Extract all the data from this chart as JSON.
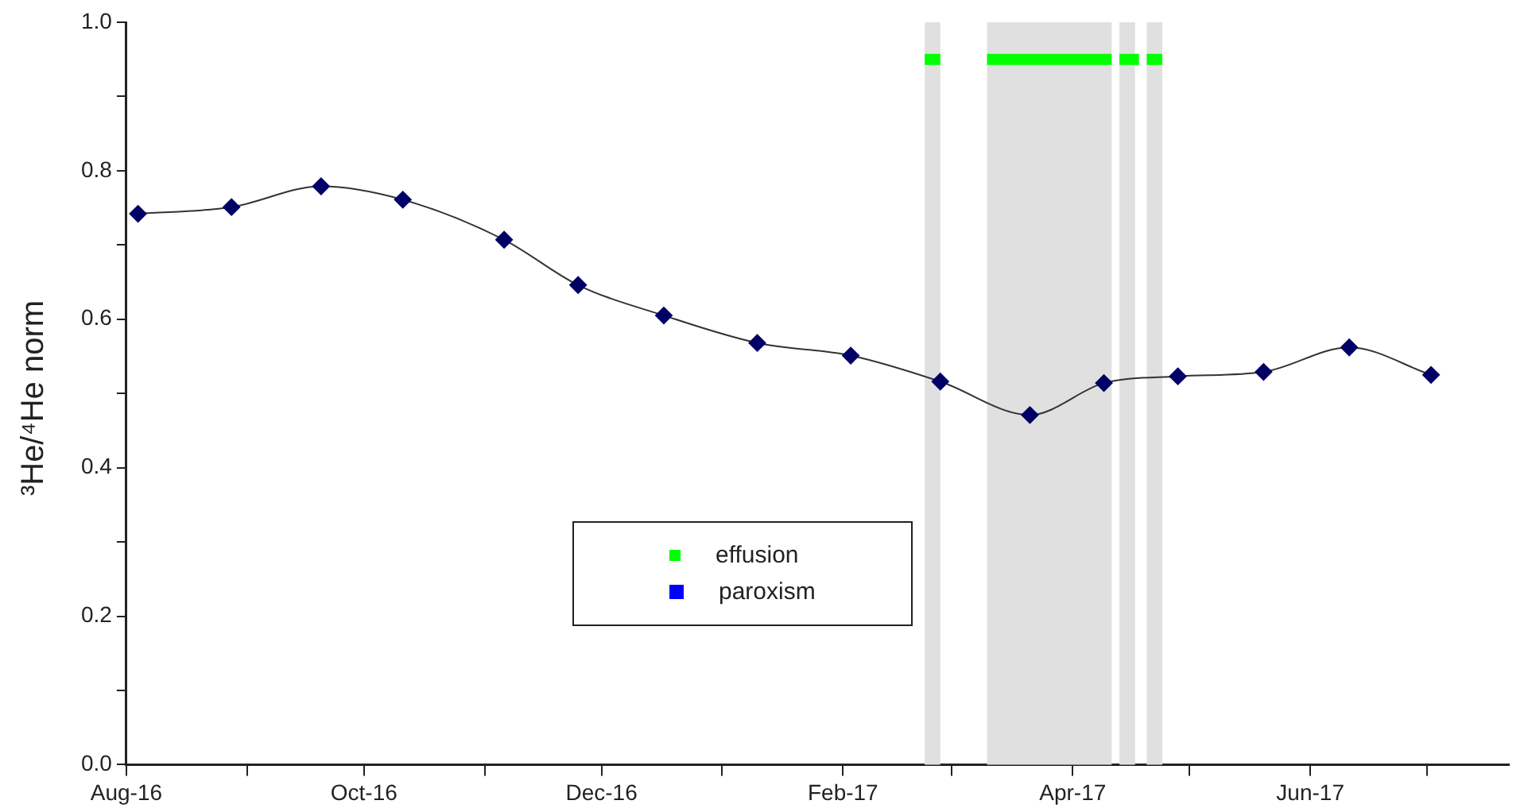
{
  "chart_data": {
    "type": "line",
    "ylabel": "³He/⁴He norm",
    "x": [
      "2016-08-04",
      "2016-08-28",
      "2016-09-20",
      "2016-10-11",
      "2016-11-06",
      "2016-11-25",
      "2016-12-17",
      "2017-01-10",
      "2017-02-03",
      "2017-02-26",
      "2017-03-21",
      "2017-04-09",
      "2017-04-28",
      "2017-05-20",
      "2017-06-11",
      "2017-07-02"
    ],
    "series": [
      {
        "color": "#000066",
        "marker": "diamond",
        "values": [
          0.742,
          0.751,
          0.779,
          0.761,
          0.707,
          0.646,
          0.605,
          0.568,
          0.551,
          0.516,
          0.471,
          0.514,
          0.523,
          0.529,
          0.562,
          0.525
        ]
      },
      {
        "name": "effusion",
        "color": "#00ff00",
        "marker": "none",
        "x": [
          "2017-02-22",
          "2017-02-26",
          "2017-03-01",
          "2017-03-10",
          "2017-04-11",
          "2017-04-12",
          "2017-04-13",
          "2017-04-18",
          "2017-04-19",
          "2017-04-20",
          "2017-04-24"
        ],
        "values": [
          0.95,
          0.95,
          null,
          0.95,
          0.95,
          null,
          0.95,
          0.95,
          null,
          0.95,
          0.95
        ]
      },
      {
        "name": "paroxism",
        "color": "#0000ff",
        "marker": "square",
        "values": [
          null,
          null,
          null,
          null,
          null,
          null,
          null,
          null,
          null,
          null,
          null,
          null,
          null,
          null,
          null,
          null
        ]
      }
    ],
    "bands": [
      {
        "axis": "x",
        "from": "2017-02-22",
        "to": "2017-02-26",
        "color": "#e0e0e0"
      },
      {
        "axis": "x",
        "from": "2017-03-10",
        "to": "2017-04-11",
        "color": "#e0e0e0"
      },
      {
        "axis": "x",
        "from": "2017-04-13",
        "to": "2017-04-17",
        "color": "#e0e0e0"
      },
      {
        "axis": "x",
        "from": "2017-04-20",
        "to": "2017-04-24",
        "color": "#e0e0e0"
      }
    ],
    "xlim": [
      "2016-08-01",
      "2017-07-22"
    ],
    "xticks": [
      {
        "value": "2016-08-01",
        "label": "Aug-16"
      },
      {
        "value": "2016-09-01",
        "label": null
      },
      {
        "value": "2016-10-01",
        "label": "Oct-16"
      },
      {
        "value": "2016-11-01",
        "label": null
      },
      {
        "value": "2016-12-01",
        "label": "Dec-16"
      },
      {
        "value": "2017-01-01",
        "label": null
      },
      {
        "value": "2017-02-01",
        "label": "Feb-17"
      },
      {
        "value": "2017-03-01",
        "label": null
      },
      {
        "value": "2017-04-01",
        "label": "Apr-17"
      },
      {
        "value": "2017-05-01",
        "label": null
      },
      {
        "value": "2017-06-01",
        "label": "Jun-17"
      },
      {
        "value": "2017-07-01",
        "label": null
      }
    ],
    "ylim": [
      0,
      1.0
    ],
    "yticks": [
      {
        "value": 0,
        "label": "0.0"
      },
      {
        "value": 0.1,
        "label": null
      },
      {
        "value": 0.2,
        "label": "0.2"
      },
      {
        "value": 0.3,
        "label": null
      },
      {
        "value": 0.4,
        "label": "0.4"
      },
      {
        "value": 0.5,
        "label": null
      },
      {
        "value": 0.6,
        "label": "0.6"
      },
      {
        "value": 0.7,
        "label": null
      },
      {
        "value": 0.8,
        "label": "0.8"
      },
      {
        "value": 0.9,
        "label": null
      },
      {
        "value": 1.0,
        "label": "1.0"
      }
    ],
    "grid": false,
    "legend": "bottom",
    "line_style": "solid"
  }
}
